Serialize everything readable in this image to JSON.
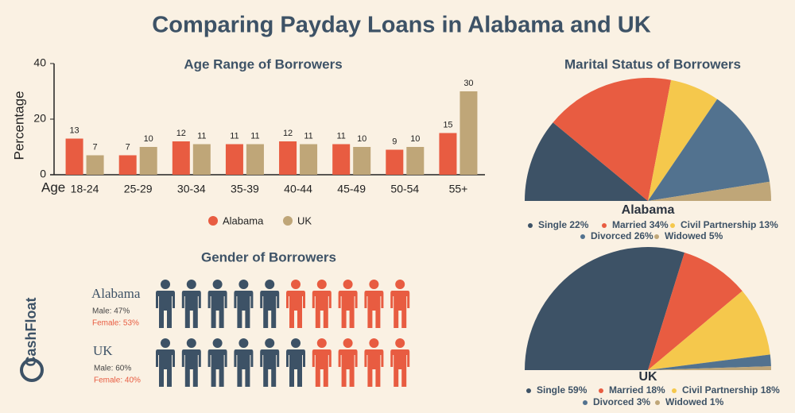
{
  "title": "Comparing Payday Loans in Alabama and UK",
  "brand": "CashFloat",
  "chart_data": [
    {
      "type": "bar",
      "title": "Age Range of Borrowers",
      "y_label": "Percentage",
      "x_label": "Age",
      "categories": [
        "18-24",
        "25-29",
        "30-34",
        "35-39",
        "40-44",
        "45-49",
        "50-54",
        "55+"
      ],
      "series": [
        {
          "name": "Alabama",
          "color": "#e85c41",
          "values": [
            13,
            7,
            12,
            11,
            12,
            11,
            9,
            15
          ]
        },
        {
          "name": "UK",
          "color": "#bfa678",
          "values": [
            7,
            10,
            11,
            11,
            11,
            10,
            10,
            30
          ]
        }
      ],
      "ylim": [
        0,
        40
      ],
      "yticks": [
        0,
        20,
        40
      ],
      "legend": "bottom"
    },
    {
      "type": "pie",
      "title": "Marital Status of Borrowers",
      "subtitle": "Alabama",
      "categories": [
        "Single",
        "Married",
        "Civil Partnership",
        "Divorced",
        "Widowed"
      ],
      "values": [
        22,
        34,
        13,
        26,
        5
      ],
      "value_labels": [
        "22%",
        "34%",
        "13%",
        "26%",
        "5%"
      ],
      "colors": [
        "#3d5266",
        "#e85c41",
        "#f5c84c",
        "#52728f",
        "#bfa678"
      ]
    },
    {
      "type": "pie",
      "subtitle": "UK",
      "categories": [
        "Single",
        "Married",
        "Civil Partnership",
        "Divorced",
        "Widowed"
      ],
      "values": [
        59,
        18,
        18,
        3,
        1
      ],
      "value_labels": [
        "59%",
        "18%",
        "18%",
        "3%",
        "1%"
      ],
      "colors": [
        "#3d5266",
        "#e85c41",
        "#f5c84c",
        "#52728f",
        "#bfa678"
      ]
    },
    {
      "type": "pictogram",
      "title": "Gender of Borrowers",
      "categories": [
        "Alabama",
        "UK"
      ],
      "series": [
        {
          "color": "#3d5266",
          "values": [
            47,
            60
          ],
          "value_labels": [
            "Male: 47%",
            "Male: 60%"
          ]
        },
        {
          "color": "#e85c41",
          "values": [
            53,
            40
          ],
          "value_labels": [
            "Female: 53%",
            "Female: 40%"
          ]
        }
      ]
    }
  ]
}
